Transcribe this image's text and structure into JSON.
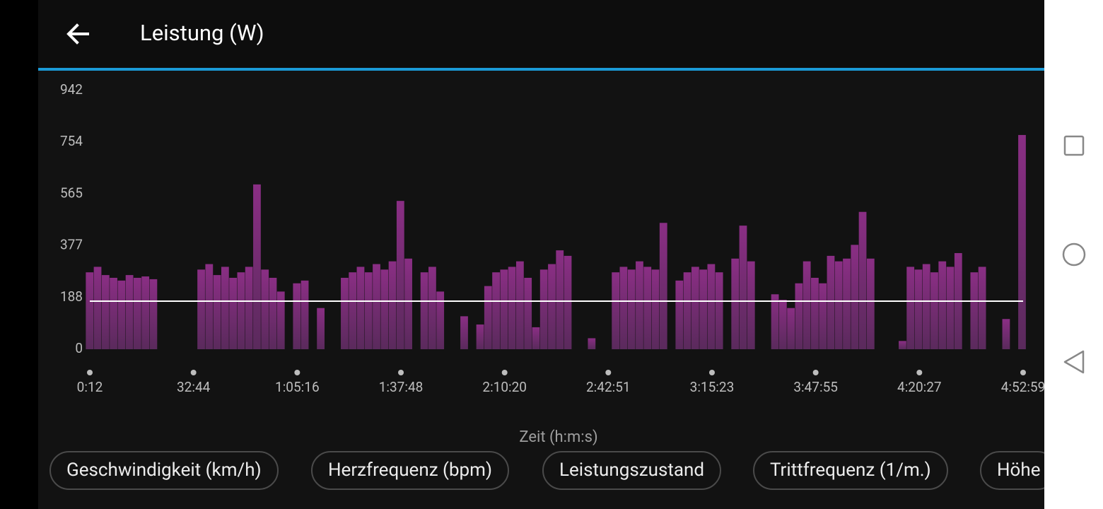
{
  "header": {
    "title": "Leistung (W)"
  },
  "chart_data": {
    "type": "bar",
    "x_label": "Zeit (h:m:s)",
    "color": "#8a2e84",
    "reference_line": 175,
    "reference_color": "#ffffff",
    "x": [
      12,
      162,
      312,
      462,
      612,
      762,
      912,
      1062,
      1212,
      1362,
      1512,
      1662,
      1812,
      1962,
      2112,
      2262,
      2412,
      2562,
      2712,
      2862,
      3012,
      3162,
      3312,
      3462,
      3612,
      3762,
      3912,
      4062,
      4212,
      4362,
      4512,
      4662,
      4812,
      4962,
      5112,
      5262,
      5412,
      5562,
      5712,
      5862,
      6012,
      6162,
      6312,
      6462,
      6612,
      6762,
      6912,
      7062,
      7212,
      7362,
      7512,
      7662,
      7812,
      7962,
      8112,
      8262,
      8412,
      8562,
      8712,
      8862,
      9012,
      9162,
      9312,
      9462,
      9612,
      9762,
      9912,
      10062,
      10212,
      10362,
      10512,
      10662,
      10812,
      10962,
      11112,
      11262,
      11412,
      11562,
      11712,
      11862,
      12012,
      12162,
      12312,
      12462,
      12612,
      12762,
      12912,
      13062,
      13212,
      13362,
      13512,
      13662,
      13812,
      13962,
      14112,
      14262,
      14412,
      14562,
      14712,
      14862,
      15012,
      15162,
      15312,
      15462,
      15612,
      15762,
      15912,
      16062,
      16212,
      16362,
      16512,
      16662,
      16812,
      16962,
      17112,
      17262,
      17412,
      17562
    ],
    "values": [
      280,
      300,
      270,
      260,
      250,
      270,
      260,
      265,
      255,
      0,
      0,
      0,
      0,
      0,
      290,
      310,
      270,
      300,
      260,
      280,
      300,
      600,
      290,
      260,
      210,
      0,
      240,
      250,
      0,
      150,
      0,
      0,
      260,
      280,
      300,
      280,
      310,
      290,
      320,
      540,
      330,
      0,
      280,
      300,
      210,
      0,
      0,
      120,
      0,
      90,
      230,
      280,
      290,
      300,
      320,
      260,
      80,
      290,
      310,
      360,
      340,
      0,
      0,
      40,
      0,
      0,
      280,
      300,
      290,
      320,
      300,
      290,
      460,
      0,
      250,
      280,
      300,
      290,
      310,
      280,
      0,
      330,
      450,
      320,
      0,
      0,
      200,
      180,
      150,
      240,
      320,
      260,
      240,
      340,
      320,
      330,
      380,
      500,
      330,
      0,
      0,
      0,
      30,
      300,
      290,
      310,
      280,
      320,
      300,
      350,
      0,
      280,
      300,
      0,
      0,
      110,
      0,
      780
    ],
    "xlim": [
      12,
      17579
    ],
    "xticks": [
      {
        "value": 12,
        "label": "0:12"
      },
      {
        "value": 1964,
        "label": "32:44"
      },
      {
        "value": 3916,
        "label": "1:05:16"
      },
      {
        "value": 5868,
        "label": "1:37:48"
      },
      {
        "value": 7820,
        "label": "2:10:20"
      },
      {
        "value": 9771,
        "label": "2:42:51"
      },
      {
        "value": 11723,
        "label": "3:15:23"
      },
      {
        "value": 13675,
        "label": "3:47:55"
      },
      {
        "value": 15627,
        "label": "4:20:27"
      },
      {
        "value": 17579,
        "label": "4:52:59"
      }
    ],
    "ylim": [
      0,
      942
    ],
    "yticks": [
      0,
      188,
      377,
      565,
      754,
      942
    ]
  },
  "chips": [
    "Geschwindigkeit (km/h)",
    "Herzfrequenz (bpm)",
    "Leistungszustand",
    "Trittfrequenz (1/m.)",
    "Höhe"
  ]
}
